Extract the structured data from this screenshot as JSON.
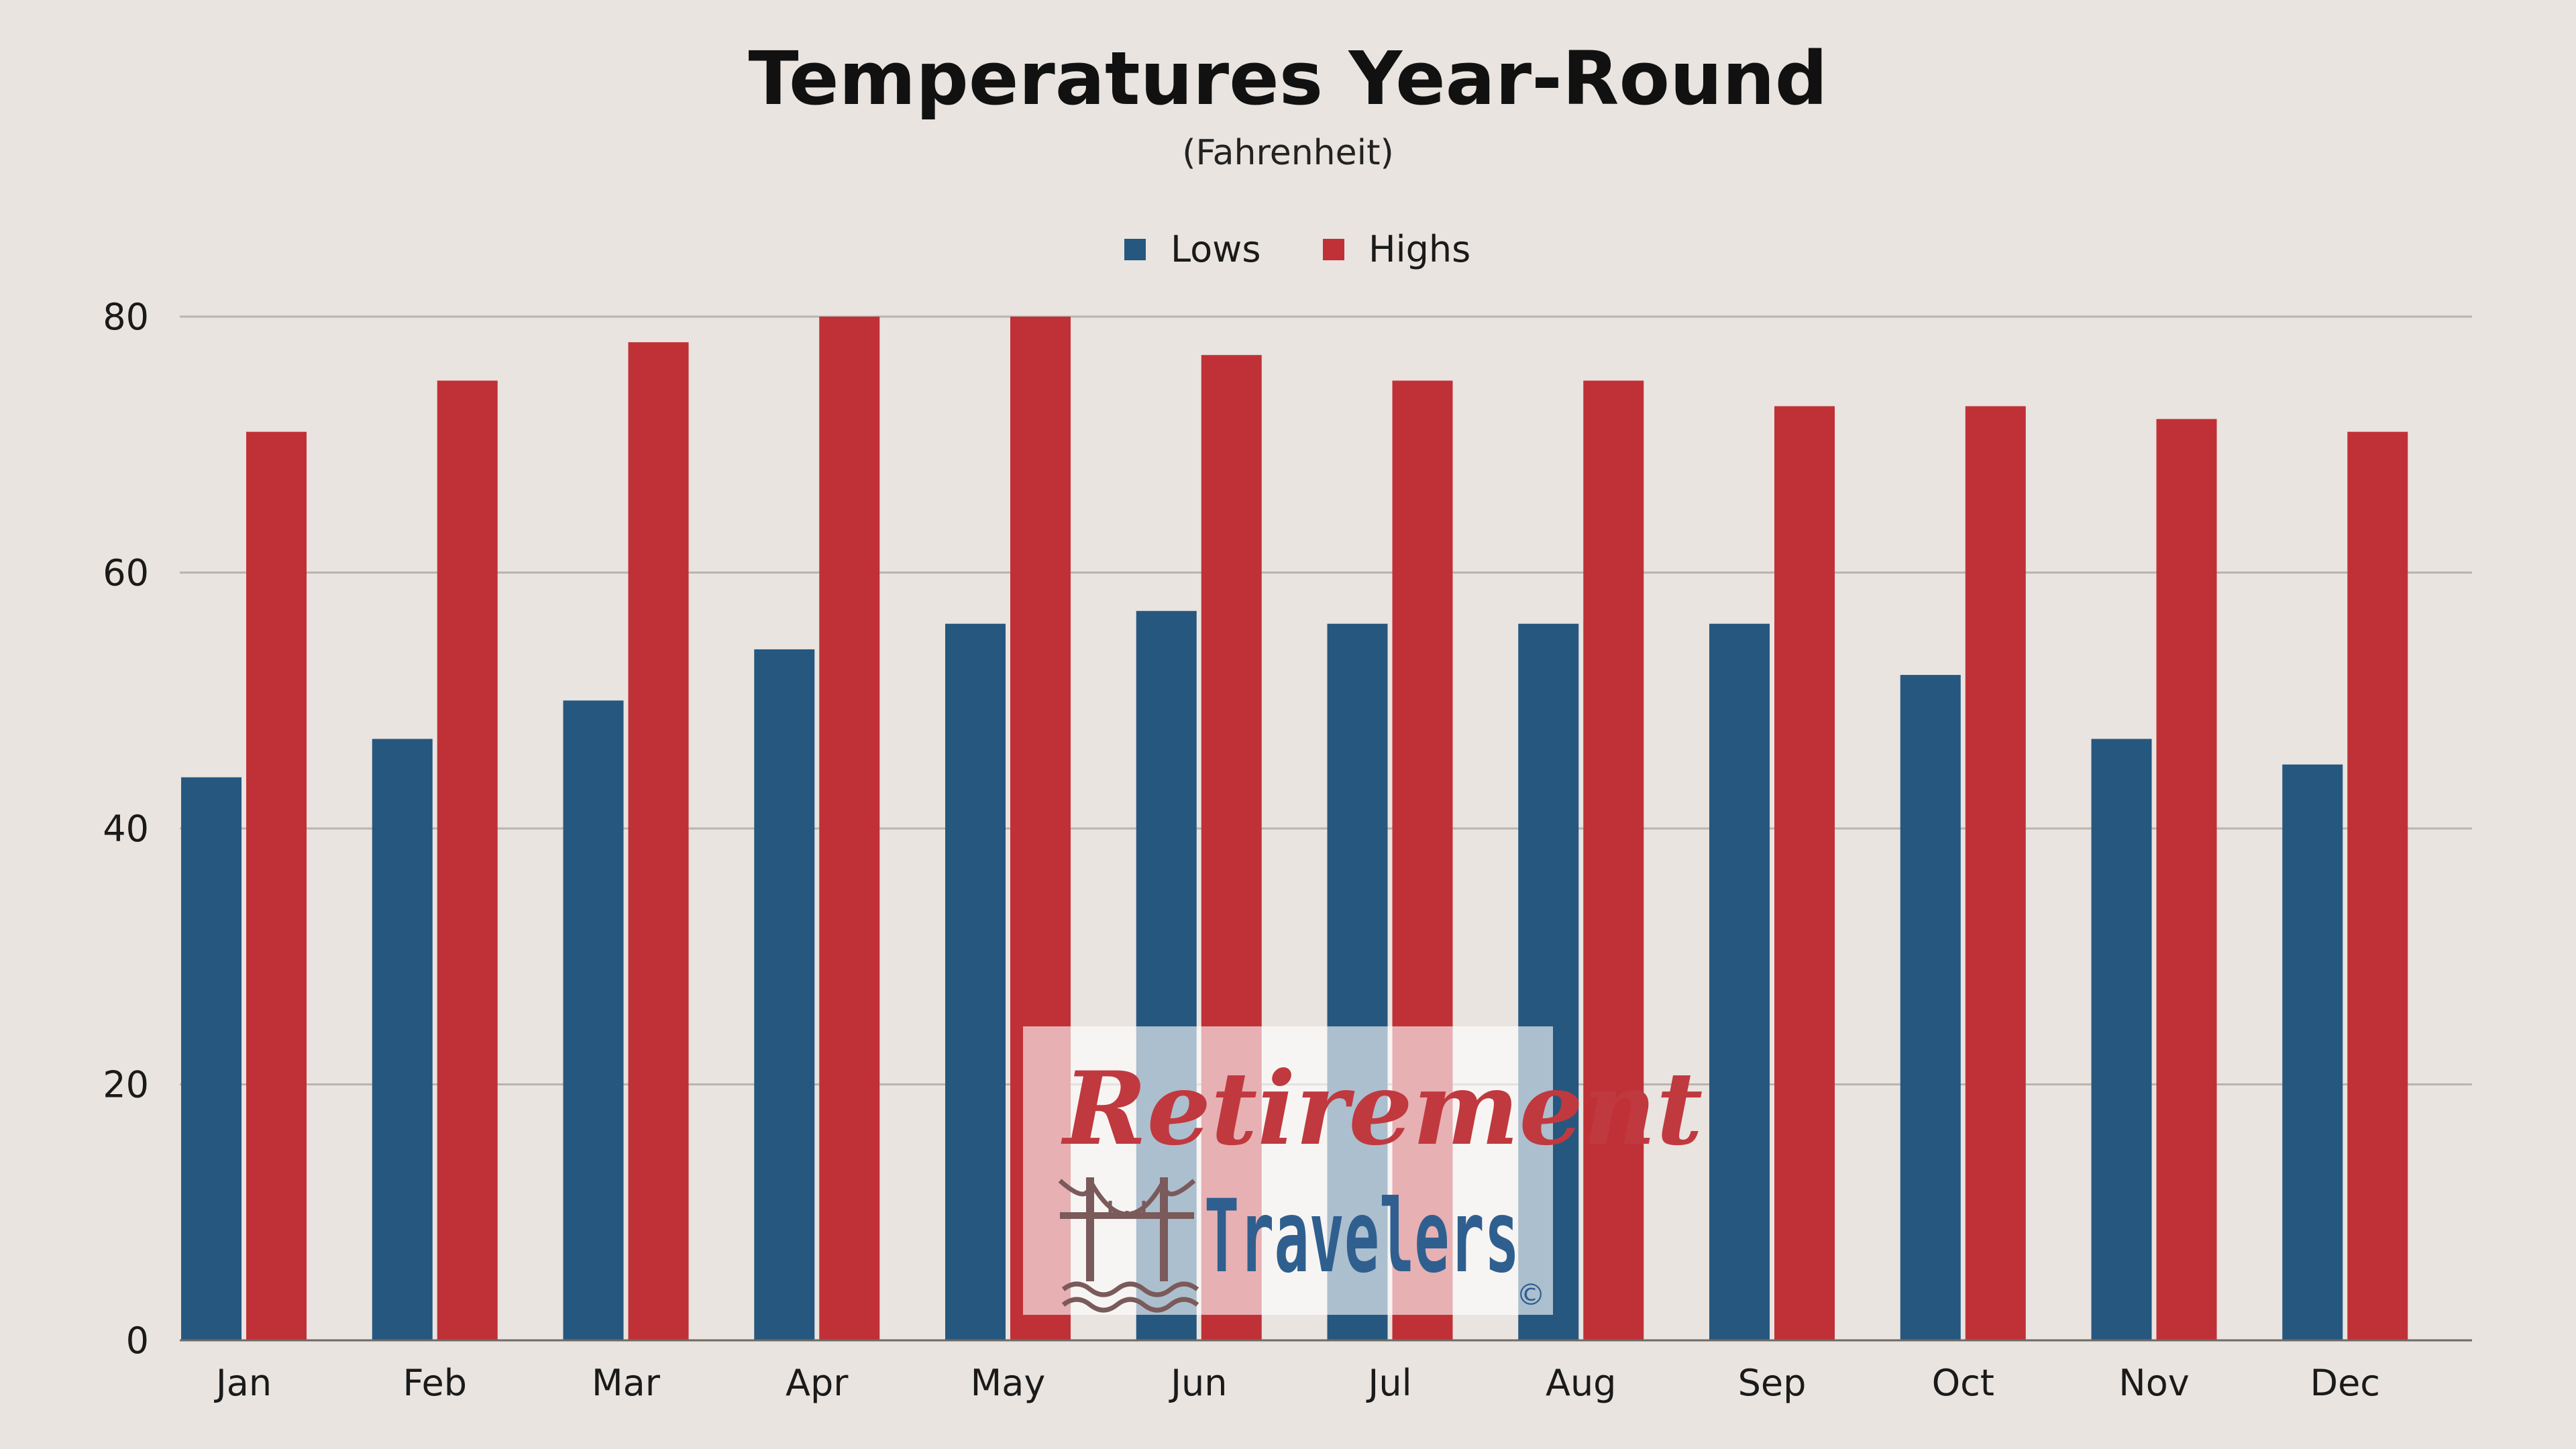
{
  "chart_data": {
    "type": "bar",
    "title": "Temperatures Year-Round",
    "subtitle": "(Fahrenheit)",
    "xlabel": "",
    "ylabel": "",
    "categories": [
      "Jan",
      "Feb",
      "Mar",
      "Apr",
      "May",
      "Jun",
      "Jul",
      "Aug",
      "Sep",
      "Oct",
      "Nov",
      "Dec"
    ],
    "series": [
      {
        "name": "Lows",
        "color": "#26577f",
        "values": [
          44,
          47,
          50,
          54,
          56,
          57,
          56,
          56,
          56,
          52,
          47,
          45
        ]
      },
      {
        "name": "Highs",
        "color": "#c03137",
        "values": [
          71,
          75,
          78,
          80,
          80,
          77,
          75,
          75,
          73,
          73,
          72,
          71
        ]
      }
    ],
    "ylim": [
      0,
      80
    ],
    "yticks": [
      0,
      20,
      40,
      60,
      80
    ],
    "grid": true,
    "legend_position": "top-center"
  },
  "watermark": {
    "line1": "Retirement",
    "line2": "Travelers",
    "symbol": "©",
    "icon": "bridge-icon",
    "colors": {
      "line1": "#c0393f",
      "line2": "#2f5f8f",
      "icon": "#7a5a5a"
    }
  },
  "colors": {
    "background": "#e9e4df",
    "grid": "#b9b4ae",
    "axis": "#6f6a66"
  }
}
